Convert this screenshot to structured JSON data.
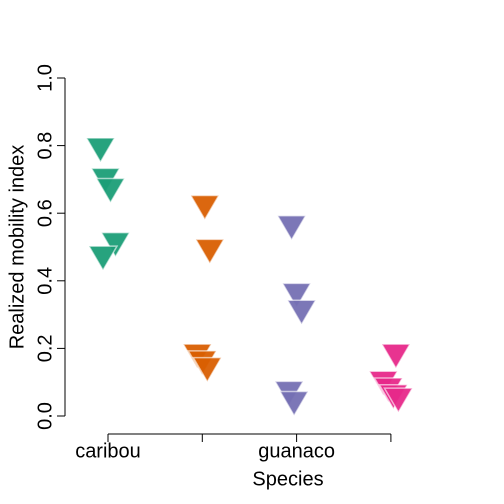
{
  "chart_data": {
    "type": "strip",
    "x_label": "Species",
    "y_label": "Realized mobility index",
    "categories": [
      "caribou",
      null,
      "guanaco",
      null
    ],
    "colors": [
      "#1b9e77",
      "#d95f02",
      "#7570b3",
      "#e7298a"
    ],
    "values": [
      [
        0.79,
        0.7,
        0.67,
        0.51,
        0.47
      ],
      [
        0.62,
        0.49,
        0.18,
        0.16,
        0.14
      ],
      [
        0.56,
        0.36,
        0.31,
        0.07,
        0.04
      ],
      [
        0.18,
        0.1,
        0.08,
        0.06,
        0.05
      ]
    ],
    "ylim": [
      0,
      1
    ],
    "yticks": [
      {
        "value": 0,
        "label": "0.0"
      },
      0.2,
      0.4,
      0.6,
      0.8,
      {
        "value": 1,
        "label": "1.0"
      }
    ]
  }
}
